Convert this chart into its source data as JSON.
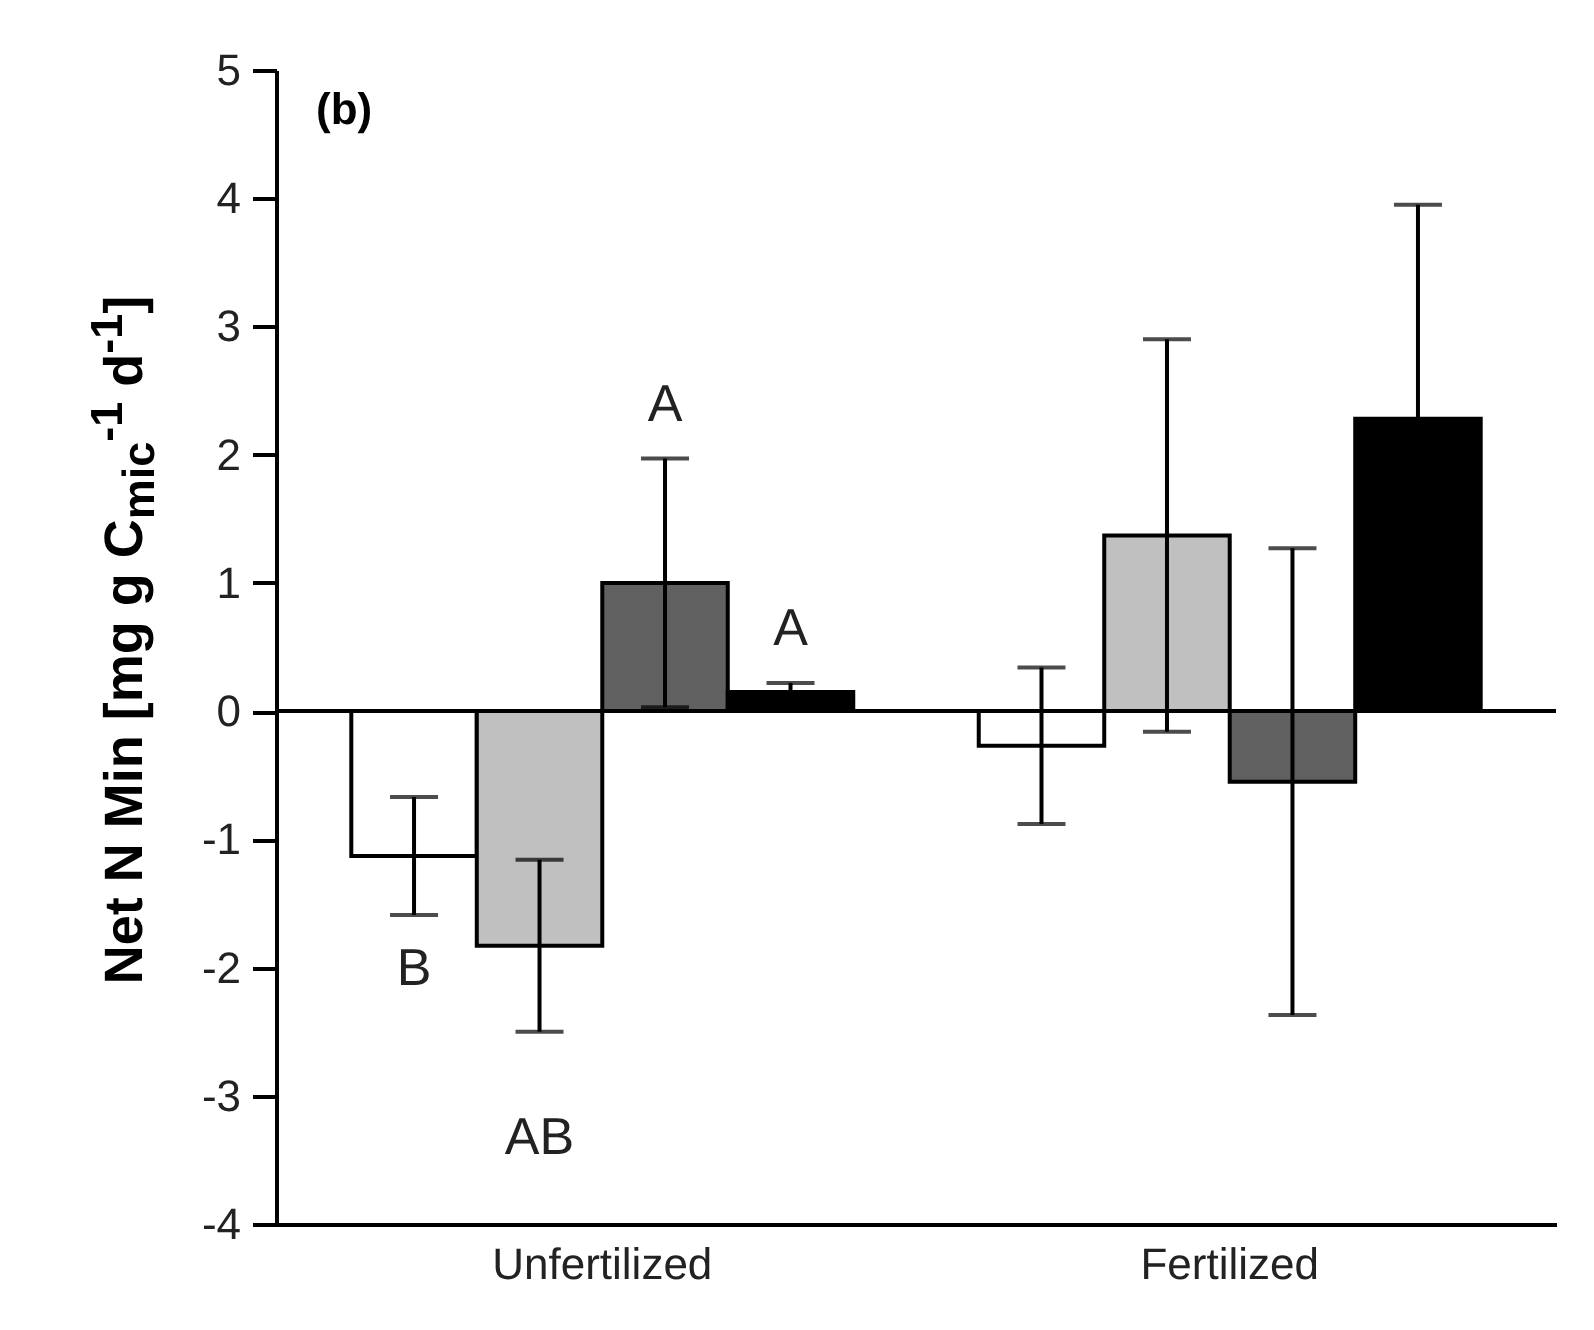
{
  "chart_data": {
    "type": "bar",
    "ylabel": "Net N Min [mg g C$_{mic}$$^{-1}$ d$^{-1}$]",
    "categories": [
      "Unfertilized",
      "Fertilized"
    ],
    "series": [
      {
        "color": "#ffffff",
        "values": [
          -1.13,
          -0.27
        ],
        "errors": [
          0.46,
          0.61
        ]
      },
      {
        "color": "#c0c0c0",
        "values": [
          -1.83,
          1.37
        ],
        "errors": [
          0.67,
          1.53
        ]
      },
      {
        "color": "#606060",
        "values": [
          1.0,
          -0.55
        ],
        "errors": [
          0.97,
          1.82
        ]
      },
      {
        "color": "#000000",
        "values": [
          0.15,
          2.28
        ],
        "errors": [
          0.07,
          1.67
        ]
      }
    ],
    "ylim": [
      -4,
      5
    ],
    "yticks": [
      -4,
      -3,
      -2,
      -1,
      0,
      1,
      2,
      3,
      4,
      5
    ],
    "ref_lines": [
      {
        "axis": "y",
        "value": 0
      }
    ],
    "annotations": [
      "(b)",
      "B",
      "AB",
      "A",
      "A"
    ],
    "grid": false,
    "legend": false
  }
}
